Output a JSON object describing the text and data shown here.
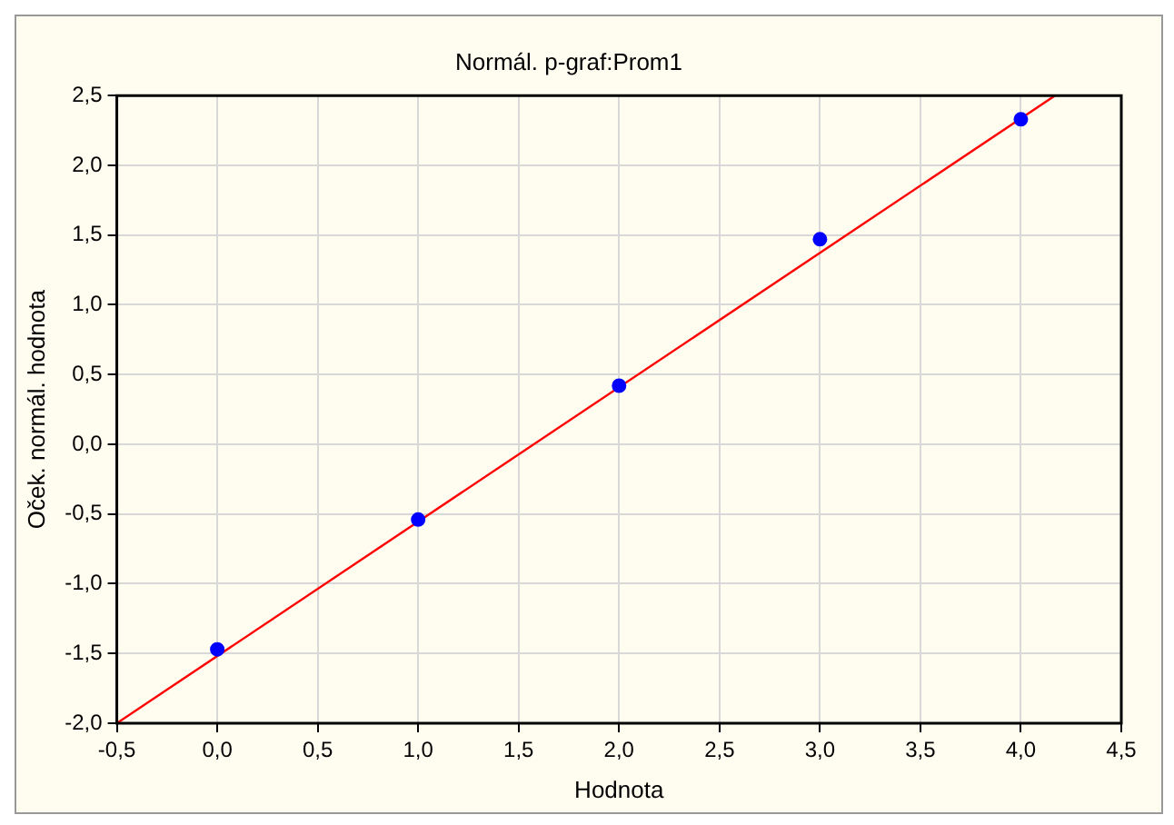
{
  "chart_data": {
    "type": "scatter",
    "title": "Normál. p-graf:Prom1",
    "xlabel": "Hodnota",
    "ylabel": "Oček. normál. hodnota",
    "series": [
      {
        "marker": "circle",
        "color": "#0000ff",
        "x": [
          0,
          1,
          2,
          3,
          4
        ],
        "values": [
          -1.47,
          -0.54,
          0.42,
          1.47,
          2.33
        ]
      },
      {
        "type": "line",
        "marker": "none",
        "color": "#ff0000",
        "x": [
          -0.5,
          4.17
        ],
        "values": [
          -2.0,
          2.5
        ]
      }
    ],
    "xlim": [
      -0.5,
      4.5
    ],
    "xticks": [
      {
        "value": -0.5,
        "label": "-0,5"
      },
      {
        "value": 0,
        "label": "0,0"
      },
      {
        "value": 0.5,
        "label": "0,5"
      },
      {
        "value": 1,
        "label": "1,0"
      },
      {
        "value": 1.5,
        "label": "1,5"
      },
      {
        "value": 2,
        "label": "2,0"
      },
      {
        "value": 2.5,
        "label": "2,5"
      },
      {
        "value": 3,
        "label": "3,0"
      },
      {
        "value": 3.5,
        "label": "3,5"
      },
      {
        "value": 4,
        "label": "4,0"
      },
      {
        "value": 4.5,
        "label": "4,5"
      }
    ],
    "ylim": [
      -2.0,
      2.5
    ],
    "yticks": [
      {
        "value": -2,
        "label": "-2,0"
      },
      {
        "value": -1.5,
        "label": "-1,5"
      },
      {
        "value": -1,
        "label": "-1,0"
      },
      {
        "value": -0.5,
        "label": "-0,5"
      },
      {
        "value": 0,
        "label": "0,0"
      },
      {
        "value": 0.5,
        "label": "0,5"
      },
      {
        "value": 1,
        "label": "1,0"
      },
      {
        "value": 1.5,
        "label": "1,5"
      },
      {
        "value": 2,
        "label": "2,0"
      },
      {
        "value": 2.5,
        "label": "2,5"
      }
    ],
    "grid": true,
    "legend": false
  }
}
